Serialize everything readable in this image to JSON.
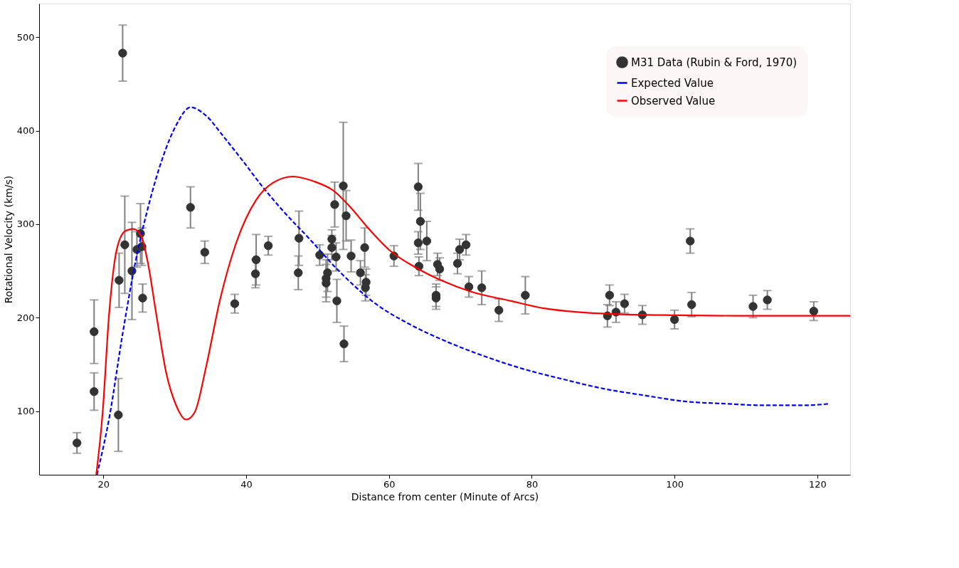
{
  "chart_data": {
    "type": "scatter",
    "xlabel": "Distance from center (Minute of Arcs)",
    "ylabel": "Rotational Velocity (km/s)",
    "xlim": [
      11,
      124.6
    ],
    "ylim": [
      32,
      536
    ],
    "xticks": [
      20,
      40,
      60,
      80,
      100,
      120
    ],
    "yticks": [
      100,
      200,
      300,
      400,
      500
    ],
    "grid": false,
    "legend": "top right",
    "series": [
      {
        "name": "M31 Data (Rubin & Ford, 1970)",
        "marker": "circle",
        "color": "#333333",
        "x": [
          16.3,
          18.7,
          18.7,
          22.1,
          22.2,
          22.7,
          23.0,
          24.0,
          24.7,
          25.2,
          25.4,
          25.5,
          32.2,
          34.2,
          38.4,
          41.3,
          41.4,
          43.1,
          47.4,
          47.3,
          50.3,
          52.0,
          52.0,
          52.4,
          53.6,
          54.0,
          52.6,
          51.4,
          51.2,
          51.2,
          52.7,
          53.7,
          54.7,
          56.6,
          56.0,
          56.8,
          56.7,
          60.7,
          64.1,
          64.4,
          64.1,
          65.3,
          64.2,
          66.8,
          67.1,
          66.6,
          66.6,
          69.6,
          69.9,
          70.8,
          71.2,
          73.0,
          75.4,
          79.1,
          90.9,
          90.6,
          91.8,
          93.0,
          95.5,
          100.0,
          102.2,
          102.4,
          111.0,
          113.0,
          119.5
        ],
        "values": [
          66,
          185,
          121,
          96,
          240,
          483,
          278,
          250,
          273,
          290,
          276,
          221,
          318,
          270,
          215,
          247,
          262,
          277,
          285,
          248,
          267,
          284,
          275,
          321,
          341,
          309,
          265,
          248,
          242,
          237,
          218,
          172,
          266,
          275,
          248,
          238,
          232,
          266,
          340,
          303,
          280,
          282,
          255,
          257,
          252,
          224,
          221,
          258,
          273,
          278,
          233,
          232,
          208,
          224,
          224,
          202,
          206,
          215,
          203,
          198,
          282,
          214,
          212,
          219,
          207
        ],
        "errors": [
          11,
          34,
          20,
          39,
          29,
          30,
          52,
          52,
          19,
          32,
          20,
          15,
          22,
          12,
          10,
          15,
          27,
          10,
          29,
          18,
          11,
          10,
          13,
          24,
          68,
          27,
          15,
          20,
          20,
          20,
          23,
          19,
          17,
          21,
          13,
          14,
          14,
          11,
          25,
          30,
          12,
          21,
          10,
          12,
          12,
          12,
          12,
          11,
          11,
          11,
          11,
          18,
          12,
          20,
          11,
          12,
          11,
          10,
          10,
          10,
          13,
          13,
          12,
          10,
          10
        ]
      },
      {
        "name": "Expected Value",
        "type": "line",
        "line_style": "dashed",
        "color": "#0000ff",
        "x": [
          19.1,
          20.8,
          22.7,
          24.5,
          26.4,
          28.3,
          30.2,
          32.2,
          34.4,
          36.7,
          39.5,
          42.3,
          45.2,
          48.9,
          52.6,
          58.3,
          62.9,
          67.6,
          73.3,
          78.9,
          84.5,
          90.1,
          95.7,
          101.4,
          107.0,
          112.6,
          118.2,
          121.8
        ],
        "values": [
          32,
          92,
          183,
          260,
          322,
          371,
          406,
          425,
          416,
          395,
          368,
          340,
          314,
          284,
          253,
          214,
          193,
          176,
          159,
          145,
          134,
          124,
          117,
          110.5,
          108,
          106.3,
          106.3,
          108
        ]
      },
      {
        "name": "Observed Value",
        "type": "line",
        "line_style": "solid",
        "color": "#ff0000",
        "x": [
          19.0,
          19.9,
          20.8,
          21.9,
          23.1,
          24.2,
          25.3,
          26.2,
          27.4,
          28.8,
          30.2,
          31.6,
          32.8,
          34.4,
          36.3,
          38.6,
          41.4,
          43.7,
          46.6,
          49.4,
          52.2,
          54.5,
          57.3,
          60.1,
          63.9,
          67.6,
          71.4,
          77.0,
          81.7,
          86.4,
          91.1,
          100.4,
          109.8,
          119.2,
          124.6
        ],
        "values": [
          32,
          99,
          204,
          274,
          293,
          295,
          287.5,
          260,
          204,
          141,
          106,
          91,
          99,
          148,
          218,
          280,
          326,
          344,
          351,
          346,
          336,
          319,
          294,
          272,
          253,
          239,
          228,
          218,
          210,
          206,
          204,
          202.6,
          202,
          202,
          202
        ]
      }
    ]
  }
}
